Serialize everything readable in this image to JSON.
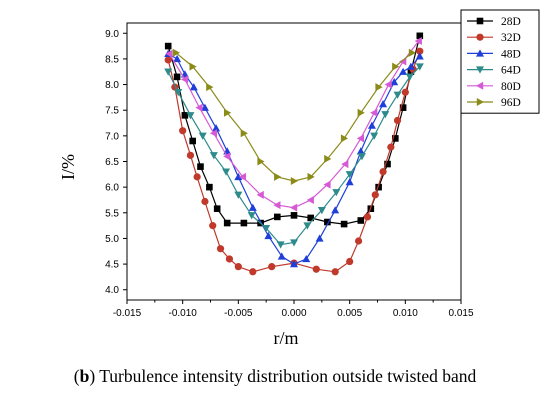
{
  "caption": {
    "tag": "b",
    "text": "Turbulence intensity distribution outside twisted band"
  },
  "chart_data": {
    "type": "line",
    "title": "",
    "xlabel": "r/m",
    "ylabel": "I/%",
    "xlim": [
      -0.015,
      0.015
    ],
    "ylim": [
      3.8,
      9.2
    ],
    "xticks": [
      "-0.015",
      "-0.010",
      "-0.005",
      "0.000",
      "0.005",
      "0.010",
      "0.015"
    ],
    "yticks": [
      "4.0",
      "4.5",
      "5.0",
      "5.5",
      "6.0",
      "6.5",
      "7.0",
      "7.5",
      "8.0",
      "8.5",
      "9.0"
    ],
    "legend_position": "top-right",
    "series": [
      {
        "name": "28D",
        "color": "#000000",
        "marker": "square",
        "x": [
          -0.0113,
          -0.0105,
          -0.0098,
          -0.0091,
          -0.0084,
          -0.0076,
          -0.0069,
          -0.006,
          -0.0045,
          -0.003,
          -0.0015,
          0.0,
          0.0015,
          0.003,
          0.0045,
          0.006,
          0.0069,
          0.0076,
          0.0084,
          0.0091,
          0.0098,
          0.0105,
          0.0113
        ],
        "y": [
          8.75,
          8.15,
          7.4,
          6.9,
          6.4,
          6.0,
          5.58,
          5.3,
          5.3,
          5.3,
          5.42,
          5.45,
          5.4,
          5.32,
          5.28,
          5.35,
          5.58,
          6.0,
          6.45,
          6.95,
          7.55,
          8.25,
          8.95
        ]
      },
      {
        "name": "32D",
        "color": "#c0392b",
        "marker": "circle",
        "x": [
          -0.0113,
          -0.0107,
          -0.01,
          -0.0093,
          -0.0087,
          -0.008,
          -0.0073,
          -0.0066,
          -0.0058,
          -0.005,
          -0.0037,
          -0.002,
          0.0,
          0.002,
          0.0037,
          0.005,
          0.0058,
          0.0066,
          0.0073,
          0.008,
          0.0087,
          0.0093,
          0.01,
          0.0107,
          0.0113
        ],
        "y": [
          8.48,
          7.95,
          7.1,
          6.62,
          6.2,
          5.72,
          5.25,
          4.8,
          4.6,
          4.45,
          4.35,
          4.45,
          4.52,
          4.4,
          4.35,
          4.55,
          4.95,
          5.42,
          5.85,
          6.3,
          6.78,
          7.3,
          7.85,
          8.3,
          8.65
        ]
      },
      {
        "name": "48D",
        "color": "#1f3fd9",
        "marker": "triangle-up",
        "x": [
          -0.0113,
          -0.0105,
          -0.0098,
          -0.009,
          -0.008,
          -0.007,
          -0.006,
          -0.005,
          -0.0037,
          -0.0023,
          -0.0011,
          0.0,
          0.0011,
          0.0023,
          0.0037,
          0.005,
          0.006,
          0.007,
          0.008,
          0.009,
          0.0098,
          0.0105,
          0.0113
        ],
        "y": [
          8.6,
          8.5,
          8.2,
          7.95,
          7.55,
          7.15,
          6.7,
          6.2,
          5.6,
          5.05,
          4.65,
          4.5,
          4.6,
          5.0,
          5.55,
          6.1,
          6.7,
          7.2,
          7.62,
          8.05,
          8.25,
          8.35,
          8.55
        ]
      },
      {
        "name": "64D",
        "color": "#2e8b8b",
        "marker": "triangle-down",
        "x": [
          -0.0113,
          -0.0104,
          -0.0093,
          -0.0082,
          -0.0072,
          -0.0061,
          -0.005,
          -0.0038,
          -0.0025,
          -0.0012,
          0.0,
          0.0012,
          0.0025,
          0.0038,
          0.005,
          0.0061,
          0.0072,
          0.0082,
          0.0093,
          0.0104,
          0.0113
        ],
        "y": [
          8.25,
          7.85,
          7.4,
          7.0,
          6.62,
          6.3,
          5.85,
          5.45,
          5.2,
          4.88,
          4.92,
          5.25,
          5.55,
          5.9,
          6.25,
          6.6,
          7.0,
          7.42,
          7.8,
          8.15,
          8.35
        ]
      },
      {
        "name": "80D",
        "color": "#d65ad6",
        "marker": "triangle-left",
        "x": [
          -0.0112,
          -0.0098,
          -0.0085,
          -0.0072,
          -0.006,
          -0.0046,
          -0.003,
          -0.0015,
          0.0,
          0.0015,
          0.003,
          0.0046,
          0.006,
          0.0072,
          0.0085,
          0.0098,
          0.0112
        ],
        "y": [
          8.6,
          8.1,
          7.55,
          7.05,
          6.6,
          6.2,
          5.85,
          5.65,
          5.6,
          5.75,
          6.05,
          6.45,
          6.95,
          7.45,
          8.0,
          8.45,
          8.85
        ]
      },
      {
        "name": "96D",
        "color": "#8b8b1a",
        "marker": "triangle-right",
        "x": [
          -0.0106,
          -0.0091,
          -0.0076,
          -0.006,
          -0.0045,
          -0.003,
          -0.0015,
          0.0,
          0.0015,
          0.003,
          0.0045,
          0.006,
          0.0076,
          0.0091,
          0.0106
        ],
        "y": [
          8.62,
          8.35,
          7.95,
          7.45,
          7.05,
          6.5,
          6.2,
          6.12,
          6.2,
          6.55,
          6.95,
          7.45,
          7.95,
          8.35,
          8.62
        ]
      }
    ]
  }
}
